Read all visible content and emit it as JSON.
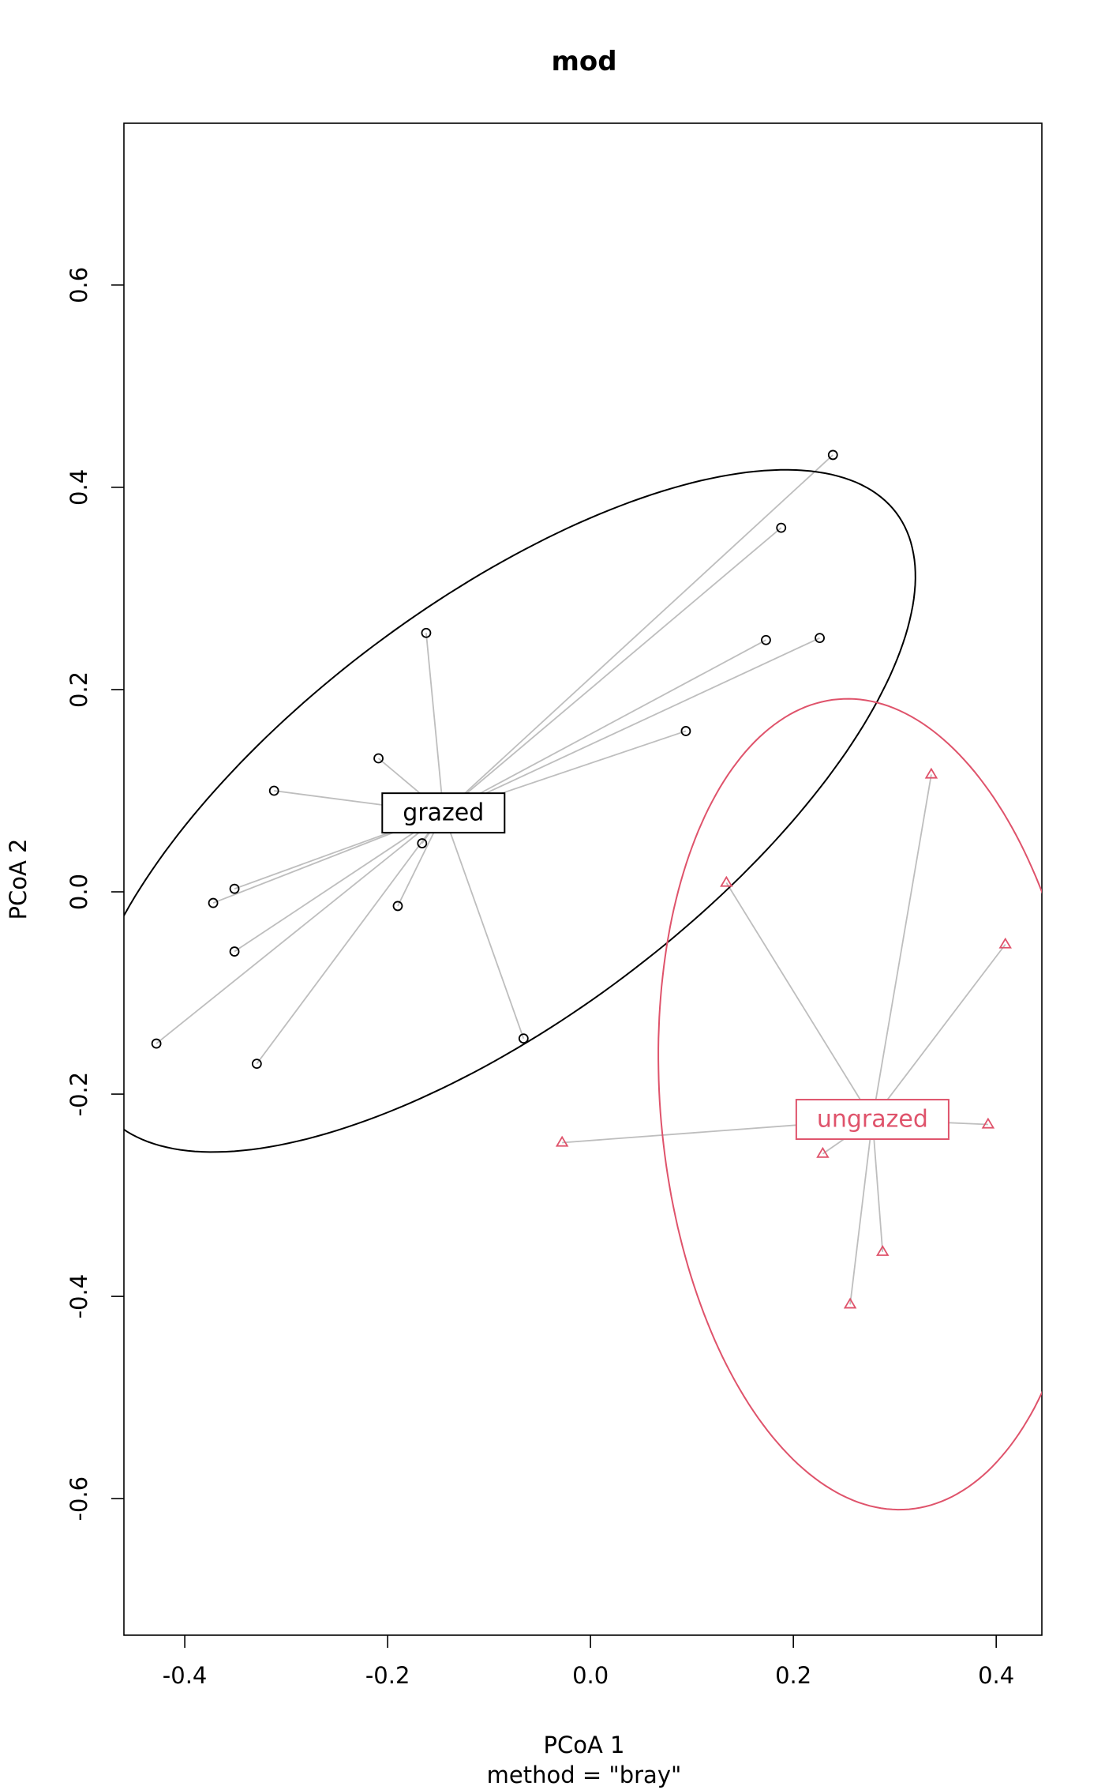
{
  "chart_data": {
    "type": "scatter",
    "title": "mod",
    "xlabel": "PCoA 1",
    "sublabel": "method = \"bray\"",
    "ylabel": "PCoA 2",
    "xlim": [
      -0.46,
      0.445
    ],
    "ylim": [
      -0.735,
      0.76
    ],
    "xticks": [
      -0.4,
      -0.2,
      0.0,
      0.2,
      0.4
    ],
    "xtick_labels": [
      "-0.4",
      "-0.2",
      "0.0",
      "0.2",
      "0.4"
    ],
    "yticks": [
      -0.6,
      -0.4,
      -0.2,
      0.0,
      0.2,
      0.4,
      0.6
    ],
    "ytick_labels": [
      "-0.6",
      "-0.4",
      "-0.2",
      "0.0",
      "0.2",
      "0.4",
      "0.6"
    ],
    "grid": false,
    "segment_color": "#bebebe",
    "series": [
      {
        "name": "grazed",
        "color": "#000000",
        "marker": "circle",
        "centroid": [
          -0.145,
          0.078
        ],
        "ellipse": {
          "center": [
            -0.09,
            0.08
          ],
          "semi_major": 0.49,
          "semi_minor": 0.205,
          "angle_deg": 37
        },
        "points": [
          [
            0.239,
            0.432
          ],
          [
            0.188,
            0.36
          ],
          [
            -0.162,
            0.256
          ],
          [
            0.173,
            0.249
          ],
          [
            0.226,
            0.251
          ],
          [
            0.094,
            0.159
          ],
          [
            -0.209,
            0.132
          ],
          [
            -0.312,
            0.1
          ],
          [
            -0.166,
            0.048
          ],
          [
            -0.351,
            0.003
          ],
          [
            -0.372,
            -0.011
          ],
          [
            -0.19,
            -0.014
          ],
          [
            -0.351,
            -0.059
          ],
          [
            -0.428,
            -0.15
          ],
          [
            -0.329,
            -0.17
          ],
          [
            -0.066,
            -0.145
          ]
        ]
      },
      {
        "name": "ungrazed",
        "color": "#df536b",
        "marker": "triangle",
        "centroid": [
          0.278,
          -0.225
        ],
        "ellipse": {
          "center": [
            0.279,
            -0.21
          ],
          "semi_major": 0.402,
          "semi_minor": 0.21,
          "angle_deg": 95
        },
        "points": [
          [
            0.336,
            0.116
          ],
          [
            0.134,
            0.009
          ],
          [
            0.409,
            -0.052
          ],
          [
            0.392,
            -0.23
          ],
          [
            -0.028,
            -0.248
          ],
          [
            0.229,
            -0.259
          ],
          [
            0.288,
            -0.356
          ],
          [
            0.256,
            -0.408
          ]
        ]
      }
    ]
  }
}
